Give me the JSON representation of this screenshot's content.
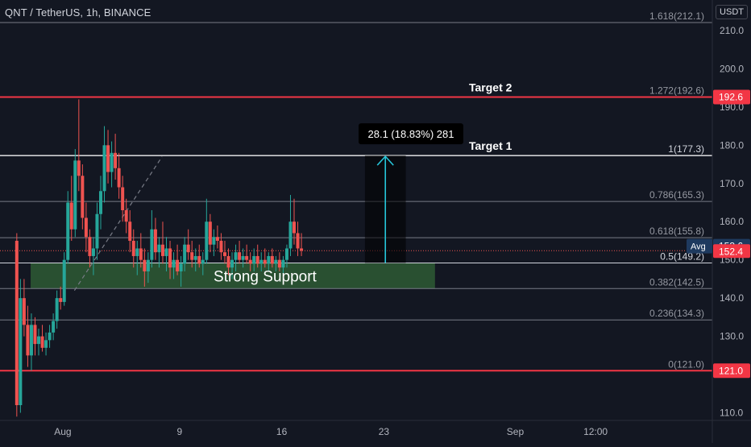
{
  "header": {
    "title": "QNT / TetherUS, 1h, BINANCE",
    "currency": "USDT"
  },
  "colors": {
    "background": "#131722",
    "up": "#26a69a",
    "down": "#ef5350",
    "target_line": "#f23645",
    "fib_line": "#787b86",
    "support_zone": "#2e5b34",
    "measure_arrow": "#26c6da"
  },
  "chart_data": {
    "type": "candlestick",
    "symbol": "QNT / TetherUS",
    "timeframe": "1h",
    "exchange": "BINANCE",
    "ylim": [
      108,
      218
    ],
    "y_ticks": [
      110.0,
      120.0,
      130.0,
      140.0,
      150.0,
      160.0,
      170.0,
      180.0,
      190.0,
      200.0,
      210.0
    ],
    "x_ticks": [
      {
        "label": "Aug",
        "x": 1
      },
      {
        "label": "9",
        "x": 9
      },
      {
        "label": "16",
        "x": 16
      },
      {
        "label": "23",
        "x": 23
      },
      {
        "label": "Sep",
        "x": 32
      },
      {
        "label": "12:00",
        "x": 37.5
      }
    ],
    "xlim": [
      -3.3,
      45.5
    ],
    "fib_levels": [
      {
        "label": "1.618(212.1)",
        "value": 212.1
      },
      {
        "label": "1.272(192.6)",
        "value": 192.6
      },
      {
        "label": "1(177.3)",
        "value": 177.3
      },
      {
        "label": "0.786(165.3)",
        "value": 165.3
      },
      {
        "label": "0.618(155.8)",
        "value": 155.8
      },
      {
        "label": "0.5(149.2)",
        "value": 149.2
      },
      {
        "label": "0.382(142.5)",
        "value": 142.5
      },
      {
        "label": "0.236(134.3)",
        "value": 134.3
      },
      {
        "label": "0(121.0)",
        "value": 121.0
      }
    ],
    "horizontal_lines": [
      {
        "label": "Target 2",
        "value": 192.6,
        "badge": "192.6"
      },
      {
        "label": "Target 1",
        "value": 177.3
      },
      {
        "label": "",
        "value": 121.0,
        "badge": "121.0"
      }
    ],
    "price_badges": {
      "avg_label": "Avg",
      "avg_value": "153.6",
      "avg_price": 153.6,
      "last_value": "152.4",
      "last_price": 152.4
    },
    "support_zone": {
      "label": "Strong Support",
      "from": 142.5,
      "to": 149.2,
      "x_start": -1.2,
      "x_end": 26.5
    },
    "measure": {
      "label": "28.1 (18.83%) 281",
      "from": 149.2,
      "to": 177.3,
      "x_start": 21.7,
      "x_end": 24.5
    },
    "trendline": {
      "from": {
        "x": 1.8,
        "y": 142
      },
      "to": {
        "x": 7.8,
        "y": 177
      }
    },
    "candles": [
      {
        "x": -2.15,
        "o": 155,
        "h": 157,
        "l": 109,
        "c": 112
      },
      {
        "x": -1.9,
        "o": 112,
        "h": 145,
        "l": 110,
        "c": 140
      },
      {
        "x": -1.65,
        "o": 140,
        "h": 145,
        "l": 130,
        "c": 133
      },
      {
        "x": -1.4,
        "o": 133,
        "h": 138,
        "l": 122,
        "c": 125
      },
      {
        "x": -1.15,
        "o": 125,
        "h": 136,
        "l": 121,
        "c": 133
      },
      {
        "x": -0.9,
        "o": 133,
        "h": 135,
        "l": 125,
        "c": 128
      },
      {
        "x": -0.65,
        "o": 128,
        "h": 132,
        "l": 125,
        "c": 130
      },
      {
        "x": -0.4,
        "o": 130,
        "h": 133,
        "l": 126,
        "c": 127
      },
      {
        "x": -0.15,
        "o": 127,
        "h": 131,
        "l": 125,
        "c": 129
      },
      {
        "x": 0.1,
        "o": 129,
        "h": 133,
        "l": 127,
        "c": 131
      },
      {
        "x": 0.35,
        "o": 131,
        "h": 136,
        "l": 129,
        "c": 134
      },
      {
        "x": 0.6,
        "o": 134,
        "h": 142,
        "l": 132,
        "c": 140
      },
      {
        "x": 0.85,
        "o": 140,
        "h": 143,
        "l": 137,
        "c": 139
      },
      {
        "x": 1.1,
        "o": 139,
        "h": 152,
        "l": 138,
        "c": 150
      },
      {
        "x": 1.35,
        "o": 150,
        "h": 168,
        "l": 149,
        "c": 165
      },
      {
        "x": 1.6,
        "o": 165,
        "h": 172,
        "l": 155,
        "c": 158
      },
      {
        "x": 1.85,
        "o": 158,
        "h": 179,
        "l": 156,
        "c": 176
      },
      {
        "x": 2.1,
        "o": 176,
        "h": 192,
        "l": 168,
        "c": 172
      },
      {
        "x": 2.35,
        "o": 172,
        "h": 175,
        "l": 158,
        "c": 161
      },
      {
        "x": 2.6,
        "o": 161,
        "h": 165,
        "l": 152,
        "c": 156
      },
      {
        "x": 2.85,
        "o": 156,
        "h": 158,
        "l": 148,
        "c": 151
      },
      {
        "x": 3.1,
        "o": 151,
        "h": 156,
        "l": 146,
        "c": 153
      },
      {
        "x": 3.35,
        "o": 153,
        "h": 165,
        "l": 150,
        "c": 162
      },
      {
        "x": 3.6,
        "o": 162,
        "h": 172,
        "l": 158,
        "c": 168
      },
      {
        "x": 3.85,
        "o": 168,
        "h": 185,
        "l": 165,
        "c": 180
      },
      {
        "x": 4.1,
        "o": 180,
        "h": 184,
        "l": 170,
        "c": 173
      },
      {
        "x": 4.35,
        "o": 173,
        "h": 181,
        "l": 169,
        "c": 178
      },
      {
        "x": 4.6,
        "o": 178,
        "h": 183,
        "l": 171,
        "c": 174
      },
      {
        "x": 4.85,
        "o": 174,
        "h": 178,
        "l": 166,
        "c": 169
      },
      {
        "x": 5.1,
        "o": 169,
        "h": 172,
        "l": 160,
        "c": 163
      },
      {
        "x": 5.35,
        "o": 163,
        "h": 166,
        "l": 157,
        "c": 160
      },
      {
        "x": 5.6,
        "o": 160,
        "h": 163,
        "l": 152,
        "c": 155
      },
      {
        "x": 5.85,
        "o": 155,
        "h": 158,
        "l": 148,
        "c": 151
      },
      {
        "x": 6.1,
        "o": 151,
        "h": 155,
        "l": 146,
        "c": 153
      },
      {
        "x": 6.35,
        "o": 153,
        "h": 157,
        "l": 148,
        "c": 150
      },
      {
        "x": 6.6,
        "o": 150,
        "h": 153,
        "l": 143,
        "c": 147
      },
      {
        "x": 6.85,
        "o": 147,
        "h": 152,
        "l": 144,
        "c": 150
      },
      {
        "x": 7.1,
        "o": 150,
        "h": 163,
        "l": 148,
        "c": 158
      },
      {
        "x": 7.35,
        "o": 158,
        "h": 161,
        "l": 150,
        "c": 152
      },
      {
        "x": 7.6,
        "o": 152,
        "h": 156,
        "l": 148,
        "c": 154
      },
      {
        "x": 7.85,
        "o": 154,
        "h": 160,
        "l": 149,
        "c": 151
      },
      {
        "x": 8.1,
        "o": 151,
        "h": 156,
        "l": 147,
        "c": 153
      },
      {
        "x": 8.35,
        "o": 153,
        "h": 155,
        "l": 145,
        "c": 148
      },
      {
        "x": 8.6,
        "o": 148,
        "h": 152,
        "l": 145,
        "c": 150
      },
      {
        "x": 8.85,
        "o": 150,
        "h": 154,
        "l": 146,
        "c": 147
      },
      {
        "x": 9.1,
        "o": 147,
        "h": 151,
        "l": 143,
        "c": 149
      },
      {
        "x": 9.35,
        "o": 149,
        "h": 156,
        "l": 147,
        "c": 154
      },
      {
        "x": 9.6,
        "o": 154,
        "h": 158,
        "l": 150,
        "c": 152
      },
      {
        "x": 9.85,
        "o": 152,
        "h": 155,
        "l": 148,
        "c": 150
      },
      {
        "x": 10.1,
        "o": 150,
        "h": 153,
        "l": 147,
        "c": 151
      },
      {
        "x": 10.35,
        "o": 151,
        "h": 154,
        "l": 148,
        "c": 149
      },
      {
        "x": 10.6,
        "o": 149,
        "h": 152,
        "l": 146,
        "c": 150
      },
      {
        "x": 10.85,
        "o": 150,
        "h": 166,
        "l": 149,
        "c": 160
      },
      {
        "x": 11.1,
        "o": 160,
        "h": 162,
        "l": 152,
        "c": 154
      },
      {
        "x": 11.35,
        "o": 154,
        "h": 158,
        "l": 151,
        "c": 156
      },
      {
        "x": 11.6,
        "o": 156,
        "h": 159,
        "l": 153,
        "c": 155
      },
      {
        "x": 11.85,
        "o": 155,
        "h": 157,
        "l": 150,
        "c": 152
      },
      {
        "x": 12.1,
        "o": 152,
        "h": 155,
        "l": 149,
        "c": 151
      },
      {
        "x": 12.35,
        "o": 151,
        "h": 153,
        "l": 146,
        "c": 148
      },
      {
        "x": 12.6,
        "o": 148,
        "h": 152,
        "l": 145,
        "c": 150
      },
      {
        "x": 12.85,
        "o": 150,
        "h": 154,
        "l": 147,
        "c": 152
      },
      {
        "x": 13.1,
        "o": 152,
        "h": 155,
        "l": 149,
        "c": 150
      },
      {
        "x": 13.35,
        "o": 150,
        "h": 153,
        "l": 148,
        "c": 151
      },
      {
        "x": 13.6,
        "o": 151,
        "h": 154,
        "l": 149,
        "c": 150
      },
      {
        "x": 13.85,
        "o": 150,
        "h": 152,
        "l": 147,
        "c": 149
      },
      {
        "x": 14.1,
        "o": 149,
        "h": 153,
        "l": 147,
        "c": 151
      },
      {
        "x": 14.35,
        "o": 151,
        "h": 154,
        "l": 148,
        "c": 149
      },
      {
        "x": 14.6,
        "o": 149,
        "h": 152,
        "l": 147,
        "c": 150
      },
      {
        "x": 14.85,
        "o": 150,
        "h": 153,
        "l": 148,
        "c": 149
      },
      {
        "x": 15.1,
        "o": 149,
        "h": 152,
        "l": 147,
        "c": 151
      },
      {
        "x": 15.35,
        "o": 151,
        "h": 153,
        "l": 148,
        "c": 149
      },
      {
        "x": 15.6,
        "o": 149,
        "h": 151,
        "l": 147,
        "c": 150
      },
      {
        "x": 15.85,
        "o": 150,
        "h": 152,
        "l": 147,
        "c": 148
      },
      {
        "x": 16.1,
        "o": 148,
        "h": 151,
        "l": 146,
        "c": 150
      },
      {
        "x": 16.35,
        "o": 150,
        "h": 154,
        "l": 148,
        "c": 153
      },
      {
        "x": 16.6,
        "o": 153,
        "h": 167,
        "l": 151,
        "c": 160
      },
      {
        "x": 16.85,
        "o": 160,
        "h": 166,
        "l": 154,
        "c": 157
      },
      {
        "x": 17.1,
        "o": 157,
        "h": 160,
        "l": 151,
        "c": 153
      },
      {
        "x": 17.35,
        "o": 153,
        "h": 157,
        "l": 151,
        "c": 152.4
      }
    ]
  }
}
